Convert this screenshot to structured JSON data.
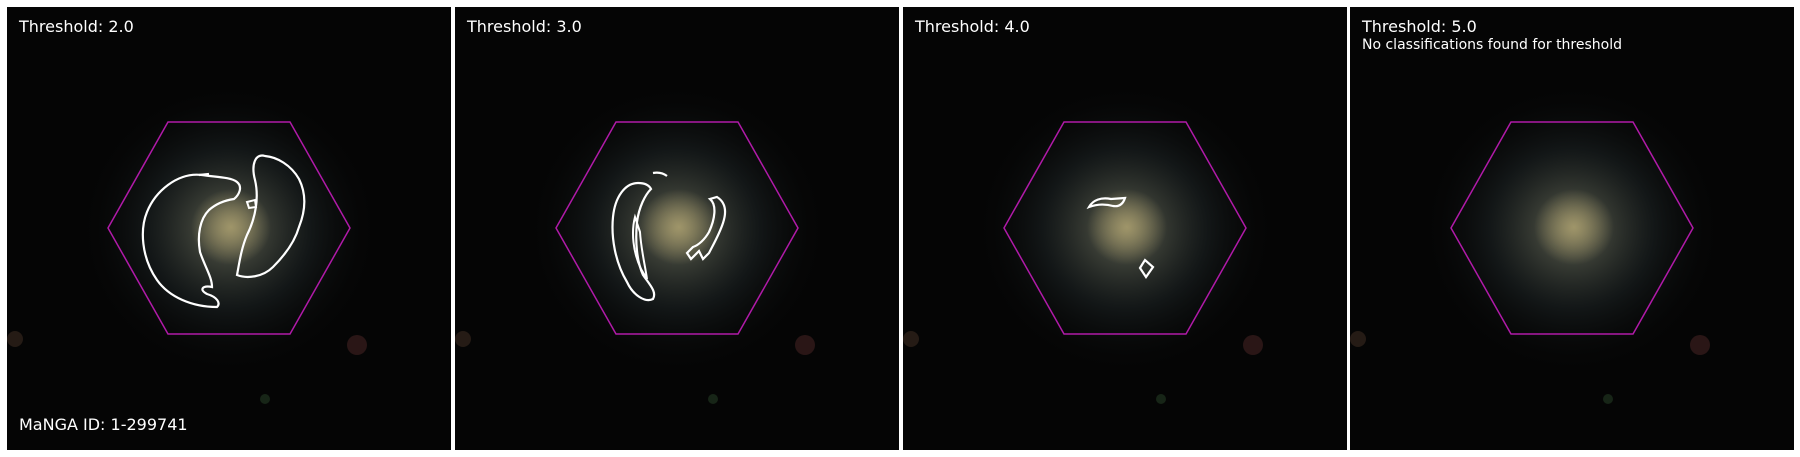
{
  "panels": [
    {
      "threshold_label": "Threshold: 2.0"
    },
    {
      "threshold_label": "Threshold: 3.0"
    },
    {
      "threshold_label": "Threshold: 4.0"
    },
    {
      "threshold_label": "Threshold: 5.0",
      "note": "No classifications found for threshold"
    }
  ],
  "manga_id_label": "MaNGA ID: 1-299741",
  "colors": {
    "hexagon_outline": "#b01aa8",
    "contour": "#ffffff",
    "background": "#050505",
    "galaxy_core": "#8c8460"
  },
  "icons": {
    "footprint": "hexagon-outline",
    "classification_region": "contour-outline"
  }
}
